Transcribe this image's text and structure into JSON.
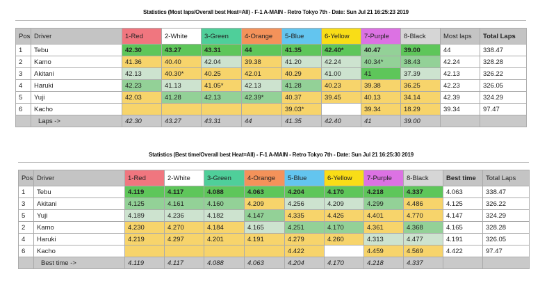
{
  "colors": {
    "red": "#f0767f",
    "white": "#ffffff",
    "green": "#4fcf9a",
    "orange": "#f4925a",
    "blue": "#63c5ef",
    "yellow": "#f9dd17",
    "purple": "#dc72e3",
    "black": "#d6d6d6",
    "best": "#5ec65a",
    "good": "#93d197",
    "near": "#cde3cf",
    "other": "#f7d46b"
  },
  "table1": {
    "title": "Statistics (Most laps/Overall best Heat=All) - F-1 A-MAIN - Retro Tokyo 7th - Date: Sun Jul 21 16:25:23 2019",
    "headers": [
      "Pos",
      "Driver",
      "1-Red",
      "2-White",
      "3-Green",
      "4-Orange",
      "5-Blue",
      "6-Yellow",
      "7-Purple",
      "8-Black",
      "Most laps",
      "Total Laps"
    ],
    "rows": [
      {
        "pos": "1",
        "driver": "Tebu",
        "cells": [
          "42.30",
          "43.27",
          "43.31",
          "44",
          "41.35",
          "42.40*",
          "40.47",
          "39.00"
        ],
        "shade": "GGGGGGMG",
        "most": "44",
        "total": "338.47"
      },
      {
        "pos": "2",
        "driver": "Kamo",
        "cells": [
          "41.36",
          "40.40",
          "42.04",
          "39.38",
          "41.20",
          "42.24",
          "40.34*",
          "38.43"
        ],
        "shade": "YYLYLLMM",
        "most": "42.24",
        "total": "328.28"
      },
      {
        "pos": "3",
        "driver": "Akitani",
        "cells": [
          "42.13",
          "40.30*",
          "40.25",
          "42.01",
          "40.29",
          "41.00",
          "41",
          "37.39"
        ],
        "shade": "LYYYYLGL",
        "most": "42.13",
        "total": "326.22"
      },
      {
        "pos": "4",
        "driver": "Haruki",
        "cells": [
          "42.23",
          "41.13",
          "41.05*",
          "42.13",
          "41.28",
          "40.23",
          "39.38",
          "36.25"
        ],
        "shade": "MLYLMYYY",
        "most": "42.23",
        "total": "326.05"
      },
      {
        "pos": "5",
        "driver": "Yuji",
        "cells": [
          "42.03",
          "41.28",
          "42.13",
          "42.39*",
          "40.37",
          "39.45",
          "40.13",
          "34.14"
        ],
        "shade": "YMMMYYYY",
        "most": "42.39",
        "total": "324.29"
      },
      {
        "pos": "6",
        "driver": "Kacho",
        "cells": [
          "",
          "",
          "",
          "",
          "39.03*",
          "",
          "39.34",
          "18.29"
        ],
        "shade": "YYYYYWYY",
        "most": "39.34",
        "total": "97.47"
      }
    ],
    "footer": {
      "label": "Laps ->",
      "values": [
        "42.30",
        "43.27",
        "43.31",
        "44",
        "41.35",
        "42.40",
        "41",
        "39.00"
      ]
    }
  },
  "table2": {
    "title": "Statistics (Best time/Overall best Heat=All) - F-1 A-MAIN - Retro Tokyo 7th - Date: Sun Jul 21 16:25:30 2019",
    "headers": [
      "Pos",
      "Driver",
      "1-Red",
      "2-White",
      "3-Green",
      "4-Orange",
      "5-Blue",
      "6-Yellow",
      "7-Purple",
      "8-Black",
      "Best time",
      "Total Laps"
    ],
    "rows": [
      {
        "pos": "1",
        "driver": "Tebu",
        "cells": [
          "4.119",
          "4.117",
          "4.088",
          "4.063",
          "4.204",
          "4.170",
          "4.218",
          "4.337"
        ],
        "shade": "GGGGGGGG",
        "most": "4.063",
        "total": "338.47"
      },
      {
        "pos": "3",
        "driver": "Akitani",
        "cells": [
          "4.125",
          "4.161",
          "4.160",
          "4.209",
          "4.256",
          "4.209",
          "4.299",
          "4.486"
        ],
        "shade": "MMMYLLMY",
        "most": "4.125",
        "total": "326.22"
      },
      {
        "pos": "5",
        "driver": "Yuji",
        "cells": [
          "4.189",
          "4.236",
          "4.182",
          "4.147",
          "4.335",
          "4.426",
          "4.401",
          "4.770"
        ],
        "shade": "LLLMYYYY",
        "most": "4.147",
        "total": "324.29"
      },
      {
        "pos": "2",
        "driver": "Kamo",
        "cells": [
          "4.230",
          "4.270",
          "4.184",
          "4.165",
          "4.251",
          "4.170",
          "4.361",
          "4.368"
        ],
        "shade": "YYYLMMYM",
        "most": "4.165",
        "total": "328.28"
      },
      {
        "pos": "4",
        "driver": "Haruki",
        "cells": [
          "4.219",
          "4.297",
          "4.201",
          "4.191",
          "4.279",
          "4.260",
          "4.313",
          "4.477"
        ],
        "shade": "YYYYYYLL",
        "most": "4.191",
        "total": "326.05"
      },
      {
        "pos": "6",
        "driver": "Kacho",
        "cells": [
          "",
          "",
          "",
          "",
          "4.422",
          "",
          "4.459",
          "4.569"
        ],
        "shade": "YYYYYWYY",
        "most": "4.422",
        "total": "97.47"
      }
    ],
    "footer": {
      "label": "Best time ->",
      "values": [
        "4.119",
        "4.117",
        "4.088",
        "4.063",
        "4.204",
        "4.170",
        "4.218",
        "4.337"
      ]
    }
  }
}
